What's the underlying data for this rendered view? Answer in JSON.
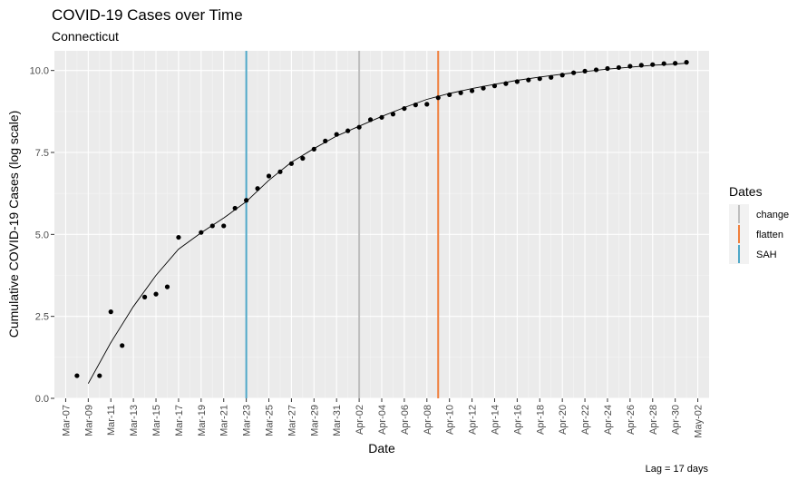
{
  "chart_data": {
    "type": "scatter",
    "title": "COVID-19 Cases over Time",
    "subtitle": "Connecticut",
    "xlabel": "Date",
    "ylabel": "Cumulative COVID-19 Cases (log scale)",
    "caption": "Lag = 17 days",
    "x_tick_labels": [
      "Mar-07",
      "Mar-09",
      "Mar-11",
      "Mar-13",
      "Mar-15",
      "Mar-17",
      "Mar-19",
      "Mar-21",
      "Mar-23",
      "Mar-25",
      "Mar-27",
      "Mar-29",
      "Mar-31",
      "Apr-02",
      "Apr-04",
      "Apr-06",
      "Apr-08",
      "Apr-10",
      "Apr-12",
      "Apr-14",
      "Apr-16",
      "Apr-18",
      "Apr-20",
      "Apr-22",
      "Apr-24",
      "Apr-26",
      "Apr-28",
      "Apr-30",
      "May-02"
    ],
    "y_ticks": [
      0,
      2.5,
      5,
      7.5,
      10
    ],
    "y_tick_labels": [
      "0.0",
      "2.5",
      "5.0",
      "7.5",
      "10.0"
    ],
    "xlim": [
      "2020-03-06",
      "2020-05-03"
    ],
    "ylim": [
      0,
      10.6
    ],
    "grid": true,
    "legend": {
      "title": "Dates",
      "position": "right",
      "entries": [
        {
          "label": "change",
          "color": "#BEBEBE"
        },
        {
          "label": "flatten",
          "color": "#F07F3C"
        },
        {
          "label": "SAH",
          "color": "#4FA8C8"
        }
      ]
    },
    "vlines": [
      {
        "series": "SAH",
        "x": "2020-03-23",
        "color": "#4FA8C8"
      },
      {
        "series": "change",
        "x": "2020-04-02",
        "color": "#BEBEBE"
      },
      {
        "series": "flatten",
        "x": "2020-04-09",
        "color": "#F07F3C"
      }
    ],
    "points": {
      "x": [
        "2020-03-08",
        "2020-03-10",
        "2020-03-11",
        "2020-03-12",
        "2020-03-14",
        "2020-03-15",
        "2020-03-16",
        "2020-03-17",
        "2020-03-19",
        "2020-03-20",
        "2020-03-21",
        "2020-03-22",
        "2020-03-23",
        "2020-03-24",
        "2020-03-25",
        "2020-03-26",
        "2020-03-27",
        "2020-03-28",
        "2020-03-29",
        "2020-03-30",
        "2020-03-31",
        "2020-04-01",
        "2020-04-02",
        "2020-04-03",
        "2020-04-04",
        "2020-04-05",
        "2020-04-06",
        "2020-04-07",
        "2020-04-08",
        "2020-04-09",
        "2020-04-10",
        "2020-04-11",
        "2020-04-12",
        "2020-04-13",
        "2020-04-14",
        "2020-04-15",
        "2020-04-16",
        "2020-04-17",
        "2020-04-18",
        "2020-04-19",
        "2020-04-20",
        "2020-04-21",
        "2020-04-22",
        "2020-04-23",
        "2020-04-24",
        "2020-04-25",
        "2020-04-26",
        "2020-04-27",
        "2020-04-28",
        "2020-04-29",
        "2020-04-30",
        "2020-05-01"
      ],
      "y": [
        0.69,
        0.69,
        2.64,
        1.61,
        3.09,
        3.18,
        3.4,
        4.91,
        5.06,
        5.26,
        5.26,
        5.8,
        6.04,
        6.4,
        6.78,
        6.91,
        7.16,
        7.32,
        7.6,
        7.85,
        8.05,
        8.16,
        8.27,
        8.5,
        8.57,
        8.67,
        8.84,
        8.95,
        8.97,
        9.17,
        9.26,
        9.32,
        9.38,
        9.46,
        9.53,
        9.6,
        9.66,
        9.71,
        9.75,
        9.79,
        9.86,
        9.93,
        9.98,
        10.02,
        10.06,
        10.09,
        10.13,
        10.16,
        10.18,
        10.21,
        10.22,
        10.25
      ]
    },
    "fit_line": {
      "x": [
        "2020-03-09",
        "2020-03-11",
        "2020-03-13",
        "2020-03-15",
        "2020-03-17",
        "2020-03-19",
        "2020-03-21",
        "2020-03-23",
        "2020-03-25",
        "2020-03-27",
        "2020-03-29",
        "2020-03-31",
        "2020-04-02",
        "2020-04-04",
        "2020-04-06",
        "2020-04-08",
        "2020-04-10",
        "2020-04-12",
        "2020-04-14",
        "2020-04-16",
        "2020-04-18",
        "2020-04-20",
        "2020-04-22",
        "2020-04-24",
        "2020-04-26",
        "2020-04-28",
        "2020-04-30",
        "2020-05-01"
      ],
      "y": [
        0.45,
        1.7,
        2.8,
        3.75,
        4.55,
        5.05,
        5.5,
        6.0,
        6.65,
        7.2,
        7.62,
        8.0,
        8.3,
        8.6,
        8.87,
        9.12,
        9.3,
        9.45,
        9.58,
        9.7,
        9.8,
        9.89,
        9.97,
        10.04,
        10.1,
        10.16,
        10.2,
        10.22
      ]
    }
  }
}
